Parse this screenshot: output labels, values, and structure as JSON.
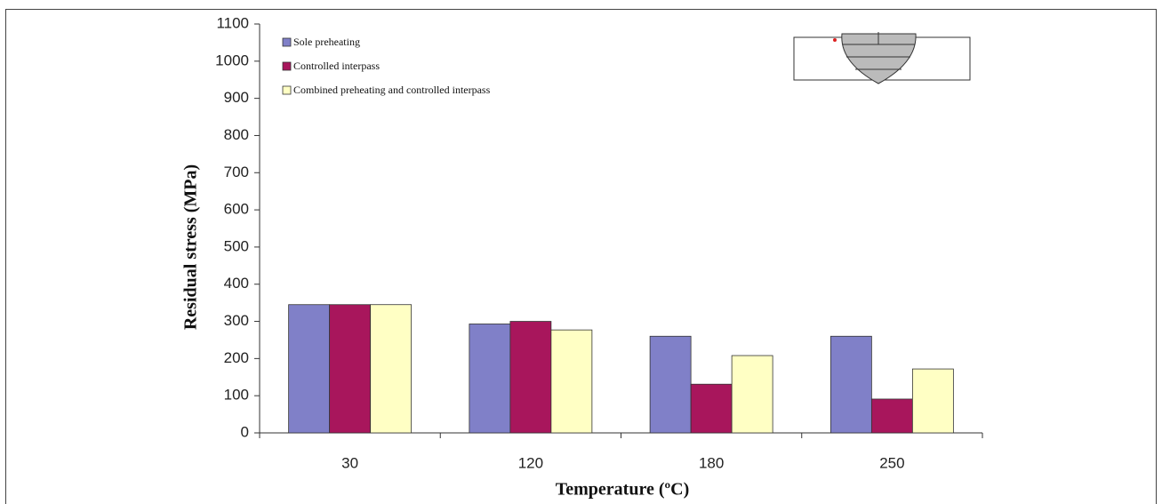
{
  "chart_data": {
    "type": "bar",
    "x_label": "Temperature (ºC)",
    "y_label": "Residual stress (MPa)",
    "categories": [
      "30",
      "120",
      "180",
      "250"
    ],
    "series": [
      {
        "name": "Sole preheating",
        "color": "#8080c8",
        "values": [
          345,
          293,
          260,
          260
        ]
      },
      {
        "name": "Controlled interpass",
        "color": "#a8165c",
        "values": [
          345,
          300,
          131,
          91
        ]
      },
      {
        "name": "Combined preheating and controlled interpass",
        "color": "#ffffc4",
        "values": [
          345,
          277,
          208,
          172
        ]
      }
    ],
    "ylim": [
      0,
      1100
    ],
    "yticks": [
      0,
      100,
      200,
      300,
      400,
      500,
      600,
      700,
      800,
      900,
      1000,
      1100
    ]
  }
}
